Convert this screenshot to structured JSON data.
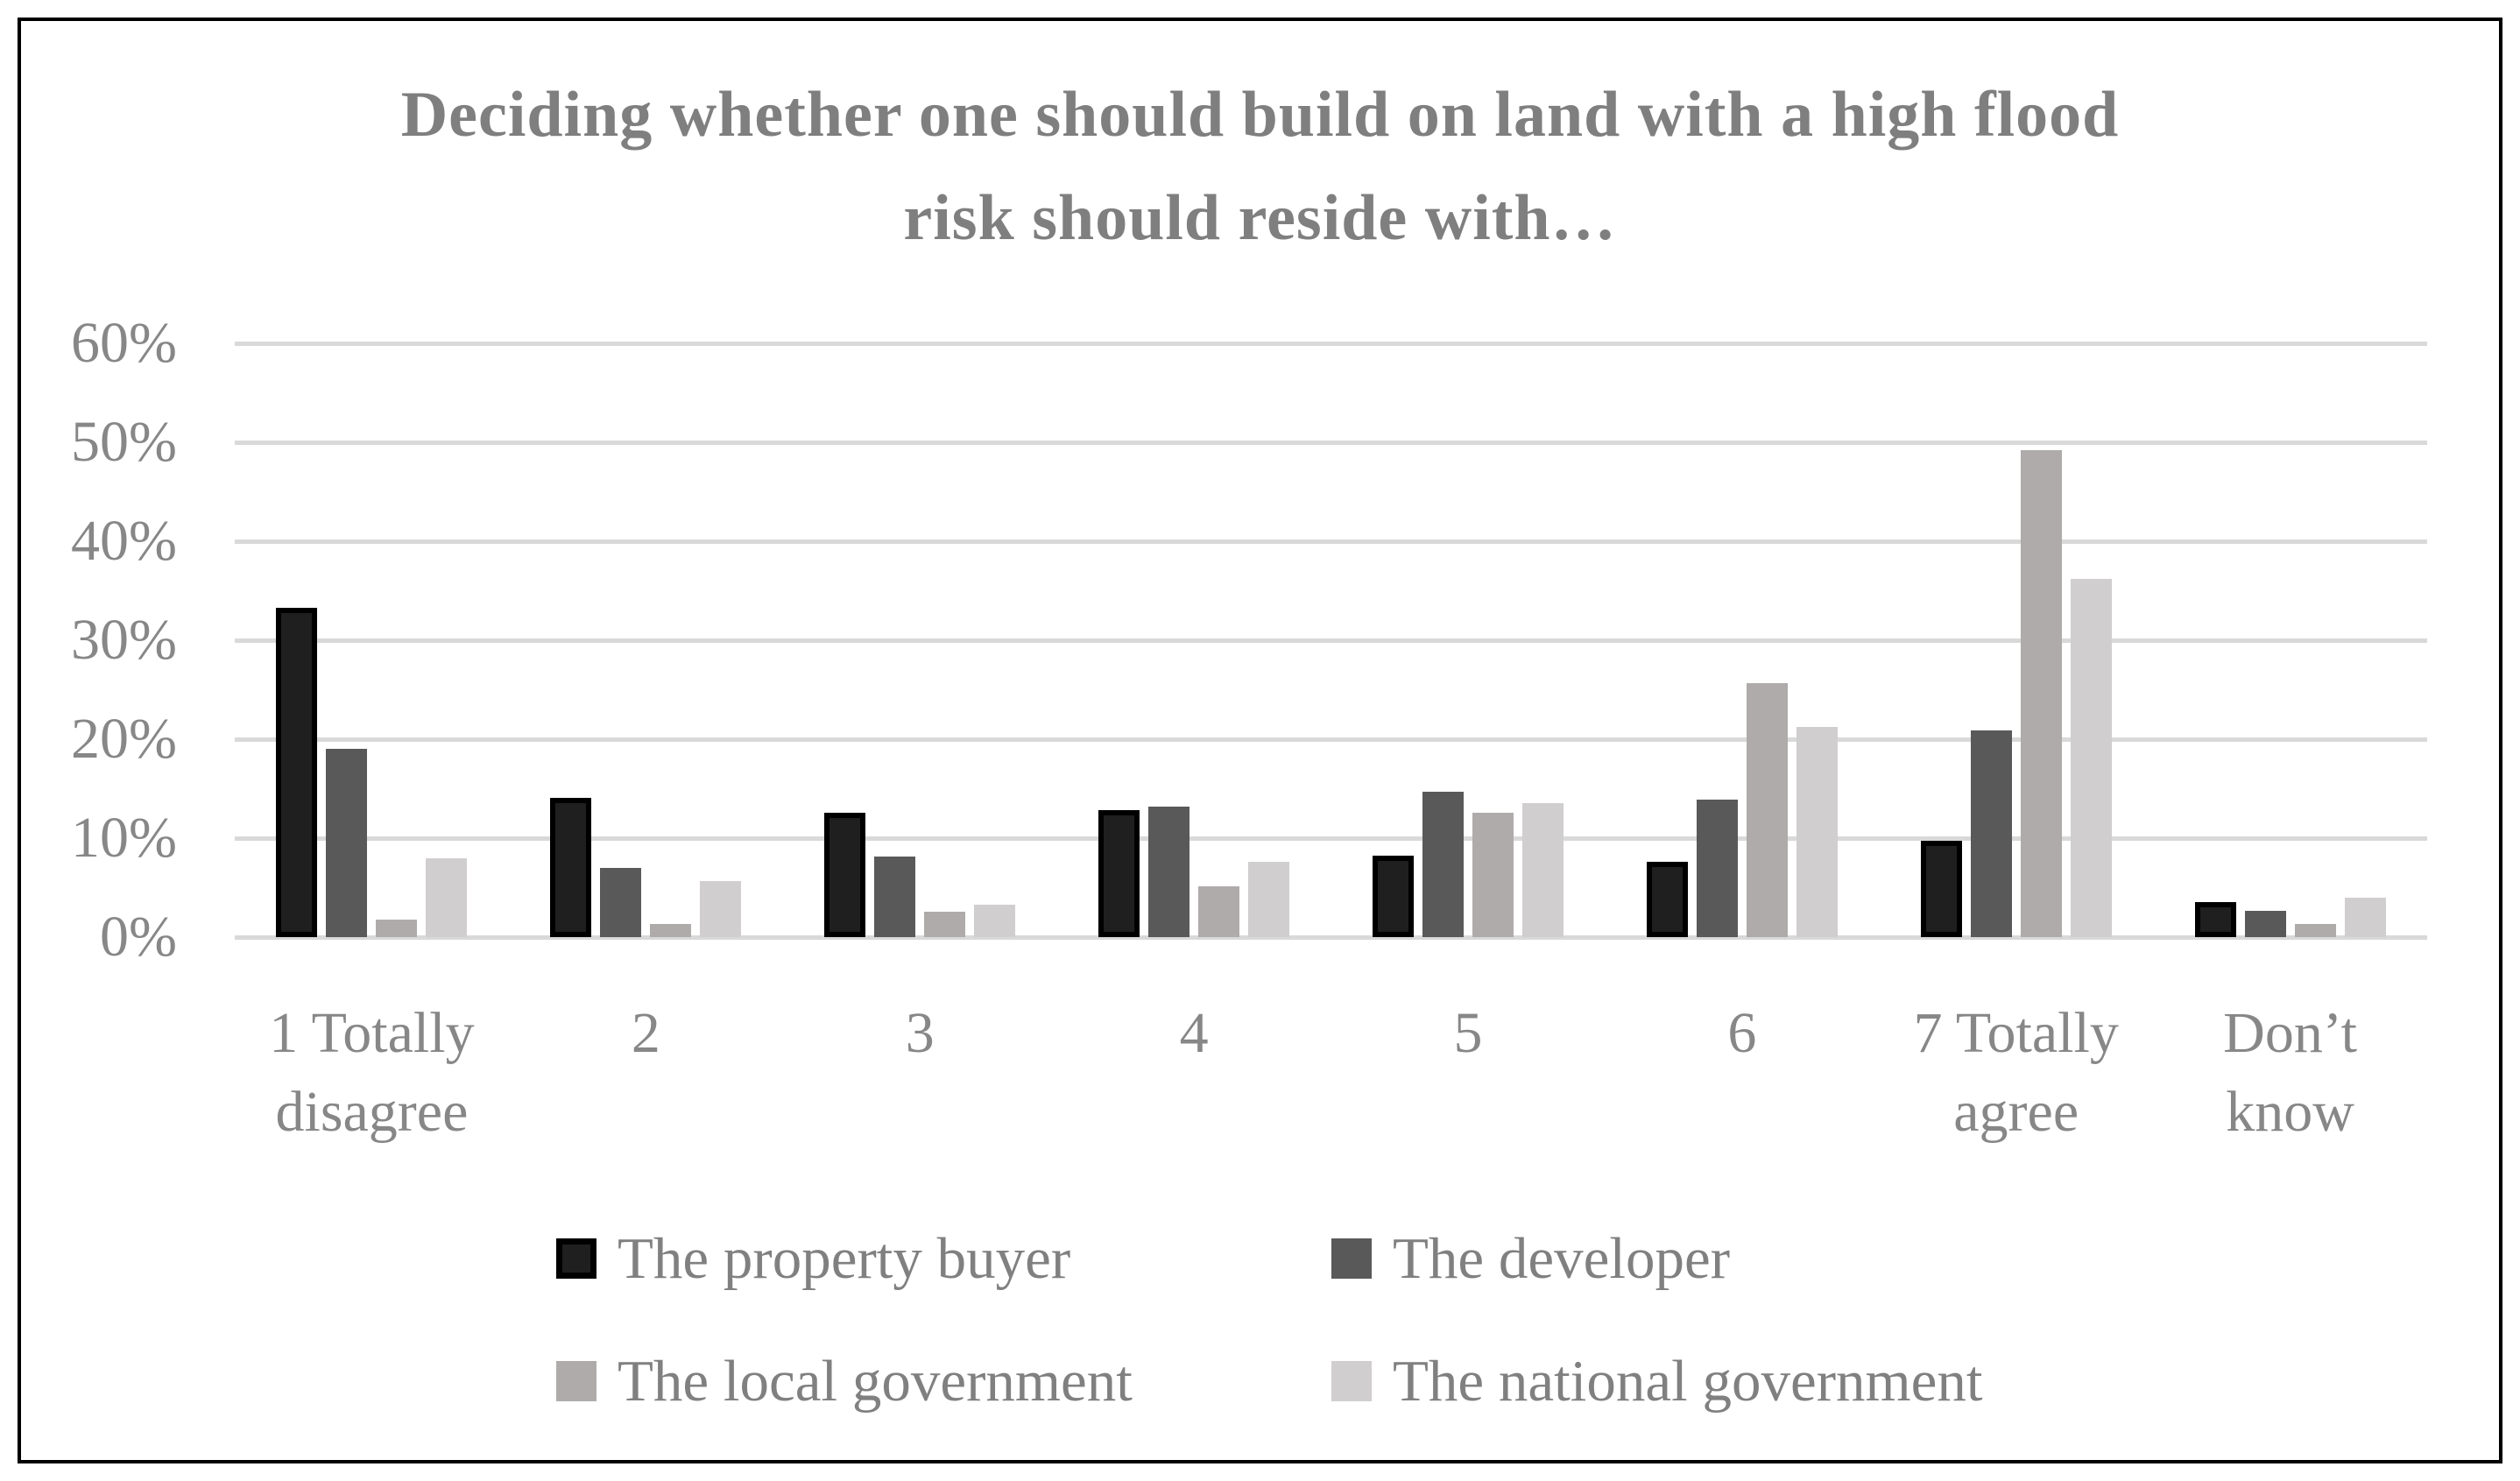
{
  "chart_data": {
    "type": "bar",
    "title": "Deciding whether one should build on land with a high flood risk should reside with…",
    "title_lines": [
      "Deciding whether one should build on land with a high flood",
      "risk should reside with…"
    ],
    "categories": [
      "1 Totally disagree",
      "2",
      "3",
      "4",
      "5",
      "6",
      "7 Totally agree",
      "Don’t know"
    ],
    "series": [
      {
        "name": "The property buyer",
        "color": "#1f1f1f",
        "border_color": "#000000",
        "values": [
          33.3,
          14.1,
          12.6,
          12.8,
          8.2,
          7.6,
          9.7,
          3.5
        ]
      },
      {
        "name": "The developer",
        "color": "#595959",
        "values": [
          19.0,
          7.0,
          8.1,
          13.2,
          14.7,
          13.9,
          20.9,
          2.7
        ]
      },
      {
        "name": "The local government",
        "color": "#afabab",
        "values": [
          1.8,
          1.3,
          2.6,
          5.1,
          12.6,
          25.7,
          49.2,
          1.3
        ]
      },
      {
        "name": "The national government",
        "color": "#d0cece",
        "values": [
          8.0,
          5.7,
          3.3,
          7.6,
          13.5,
          21.2,
          36.2,
          4.0
        ]
      }
    ],
    "ylim": [
      0,
      60
    ],
    "ytick_step": 10,
    "ytick_labels": [
      "0%",
      "10%",
      "20%",
      "30%",
      "40%",
      "50%",
      "60%"
    ],
    "grid": true,
    "legend_position": "bottom",
    "colors": {
      "background": "#ffffff",
      "frame_border": "#000000",
      "gridline": "#d9d9d9",
      "title_text": "#7f7f7f",
      "axis_text": "#878787",
      "legend_text": "#808080"
    }
  }
}
